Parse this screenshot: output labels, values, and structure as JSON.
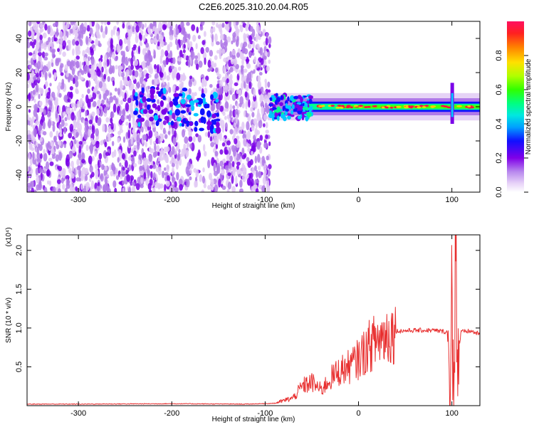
{
  "title": "C2E6.2025.310.20.04.R05",
  "chart_data": [
    {
      "type": "heatmap",
      "title": "C2E6.2025.310.20.04.R05",
      "xlabel": "Height of straight line (km)",
      "ylabel": "Frequency (Hz)",
      "xlim": [
        -355,
        130
      ],
      "ylim": [
        -50,
        50
      ],
      "xticks": [
        -300,
        -200,
        -100,
        0,
        100
      ],
      "yticks": [
        -40,
        -20,
        0,
        20,
        40
      ],
      "colorbar": {
        "label": "Normalized spectral amplitude",
        "range": [
          0.0,
          1.0
        ],
        "ticks": [
          0.0,
          0.2,
          0.4,
          0.6,
          0.8
        ],
        "colormap": "spectral-rainbow",
        "stops": [
          "#ffffff",
          "#e0c8f4",
          "#b07ae8",
          "#7a00e8",
          "#1010ff",
          "#00c8ff",
          "#00ff90",
          "#50ff00",
          "#d0ff00",
          "#ffd000",
          "#ff7000",
          "#ff1040"
        ]
      },
      "features": {
        "noise_region_x": [
          -355,
          -95
        ],
        "signal_band_x": [
          -95,
          130
        ],
        "signal_band_center_hz": 0,
        "scattered_blobs_x": [
          -240,
          -150
        ],
        "spike_x": 100
      }
    },
    {
      "type": "line",
      "xlabel": "Height of straight line (km)",
      "ylabel": "SNR (10 * v/v)",
      "y_multiplier_label": "(x10⁴)",
      "xlim": [
        -355,
        130
      ],
      "ylim": [
        0,
        2.2
      ],
      "xticks": [
        -300,
        -200,
        -100,
        0,
        100
      ],
      "yticks": [
        0.5,
        1.0,
        1.5,
        2.0
      ],
      "ytick_labels": [
        "0.5",
        "1.0",
        "1.5",
        "2.0"
      ],
      "series": [
        {
          "color": "#e83030",
          "x": [
            -355,
            -300,
            -200,
            -120,
            -90,
            -70,
            -60,
            -50,
            -40,
            -30,
            -20,
            -10,
            0,
            10,
            20,
            30,
            40,
            60,
            80,
            95,
            98,
            100,
            102,
            104,
            106,
            110,
            120,
            130
          ],
          "y": [
            0.02,
            0.02,
            0.025,
            0.02,
            0.03,
            0.1,
            0.25,
            0.3,
            0.2,
            0.35,
            0.45,
            0.5,
            0.6,
            0.75,
            0.85,
            0.92,
            0.96,
            0.97,
            0.97,
            0.95,
            0.2,
            1.5,
            0.05,
            2.2,
            0.6,
            0.95,
            0.96,
            0.92
          ]
        }
      ]
    }
  ]
}
